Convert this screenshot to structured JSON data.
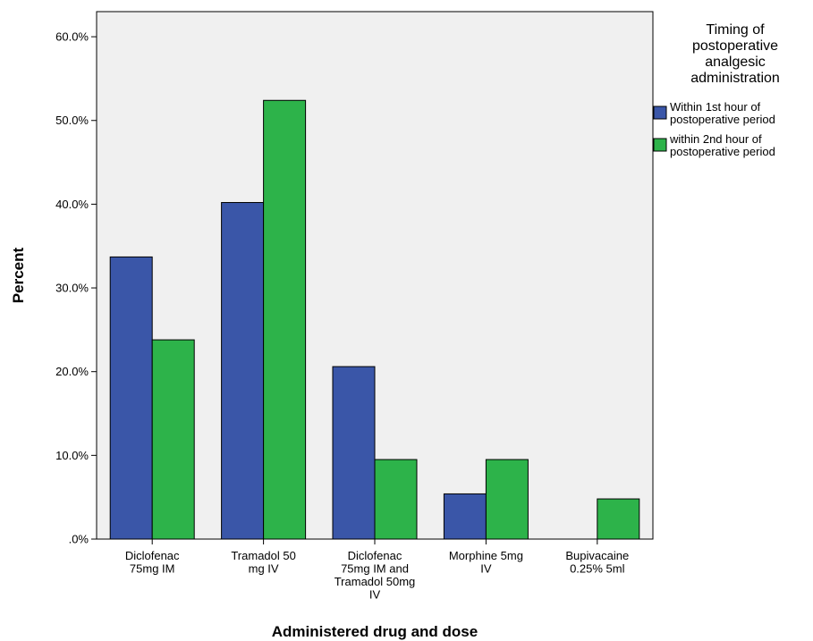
{
  "chart_data": {
    "type": "bar",
    "title": "",
    "xlabel": "Administered drug and dose",
    "ylabel": "Percent",
    "ylim": [
      0,
      63
    ],
    "yticks": [
      0,
      10,
      20,
      30,
      40,
      50,
      60
    ],
    "ytick_labels": [
      ".0%",
      "10.0%",
      "20.0%",
      "30.0%",
      "40.0%",
      "50.0%",
      "60.0%"
    ],
    "categories": [
      "Diclofenac 75mg IM",
      "Tramadol 50 mg IV",
      "Diclofenac 75mg IM and Tramadol 50mg IV",
      "Morphine 5mg IV",
      "Bupivacaine 0.25% 5ml"
    ],
    "category_label_lines": [
      [
        "Diclofenac",
        "75mg IM"
      ],
      [
        "Tramadol 50",
        "mg IV"
      ],
      [
        "Diclofenac",
        "75mg IM and",
        "Tramadol 50mg",
        "IV"
      ],
      [
        "Morphine 5mg",
        "IV"
      ],
      [
        "Bupivacaine",
        "0.25% 5ml"
      ]
    ],
    "series": [
      {
        "name": "Within 1st hour of postoperative period",
        "name_lines": [
          "Within 1st hour of",
          "postoperative period"
        ],
        "color": "#3A56A8",
        "values": [
          33.7,
          40.2,
          20.6,
          5.4,
          0
        ]
      },
      {
        "name": "within 2nd hour of postoperative period",
        "name_lines": [
          "within 2nd hour of",
          "postoperative period"
        ],
        "color": "#2DB34A",
        "values": [
          23.8,
          52.4,
          9.5,
          9.5,
          4.8
        ]
      }
    ],
    "legend": {
      "title": "Timing of postoperative analgesic administration",
      "title_lines": [
        "Timing of",
        "postoperative",
        "analgesic",
        "administration"
      ],
      "placement": "right"
    },
    "grid": false,
    "plot_background": "#F0F0F0"
  }
}
